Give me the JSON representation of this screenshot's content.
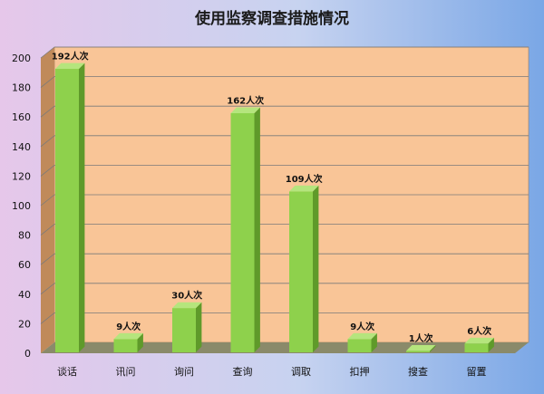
{
  "chart_data": {
    "type": "bar",
    "title": "使用监察调查措施情况",
    "categories": [
      "谈话",
      "讯问",
      "询问",
      "查询",
      "调取",
      "扣押",
      "搜查",
      "留置"
    ],
    "values": [
      192,
      9,
      30,
      162,
      109,
      9,
      1,
      6
    ],
    "value_labels": [
      "192人次",
      "9人次",
      "30人次",
      "162人次",
      "109人次",
      "9人次",
      "1人次",
      "6人次"
    ],
    "y_ticks": [
      "0",
      "20",
      "40",
      "60",
      "80",
      "100",
      "120",
      "140",
      "160",
      "180",
      "200"
    ],
    "ylim": [
      0,
      200
    ],
    "xlabel": "",
    "ylabel": "",
    "grid": true,
    "legend": "none"
  },
  "colors": {
    "bar_front": "#8ed14c",
    "bar_side": "#5f9a2a",
    "bar_top": "#b5e57d",
    "plot_back": "#f9c597",
    "plot_left_wall": "#c08a5a",
    "plot_floor": "#8a8a6a",
    "gridline": "#7a7a7a",
    "background_left": "#e6c7ea",
    "background_right": "#7aa7e6"
  }
}
